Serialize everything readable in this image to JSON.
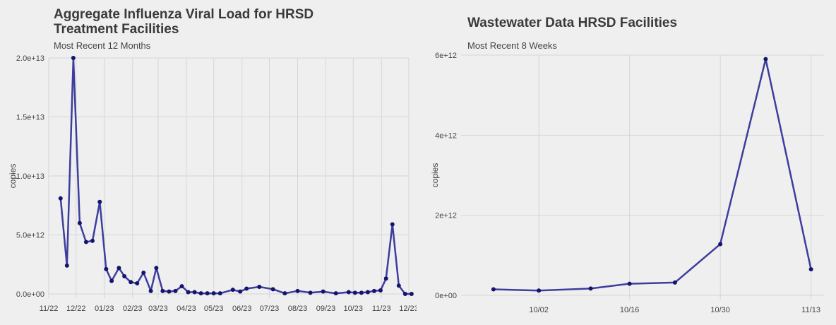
{
  "colors": {
    "background": "#efefef",
    "grid": "#d6d6d6",
    "line": "#3d3d9e",
    "point": "#14146e"
  },
  "chart_data": [
    {
      "type": "line",
      "title": "Aggregate Influenza Viral Load for HRSD\n Treatment Facilities",
      "subtitle": "Most Recent 12 Months",
      "ylabel": "copies",
      "xlabel": "",
      "ylim": [
        0,
        20000000000000
      ],
      "y_ticks": [
        0,
        5000000000000,
        10000000000000,
        15000000000000,
        20000000000000
      ],
      "y_tick_labels": [
        "0.0e+00",
        "5.0e+12",
        "1.0e+13",
        "1.5e+13",
        "2.0e+13"
      ],
      "xlim": [
        "2022-11-01",
        "2023-12-01"
      ],
      "x_ticks": [
        "2022-11-01",
        "2022-12-01",
        "2023-01-01",
        "2023-02-01",
        "2023-03-01",
        "2023-04-01",
        "2023-05-01",
        "2023-06-01",
        "2023-07-01",
        "2023-08-01",
        "2023-09-01",
        "2023-10-01",
        "2023-11-01",
        "2023-12-01"
      ],
      "x_tick_labels": [
        "11/22",
        "12/22",
        "01/23",
        "02/23",
        "03/23",
        "04/23",
        "05/23",
        "06/23",
        "07/23",
        "08/23",
        "09/23",
        "10/23",
        "11/23",
        "12/23"
      ],
      "grid": true,
      "series": [
        {
          "x": [
            "2022-11-14",
            "2022-11-21",
            "2022-11-28",
            "2022-12-05",
            "2022-12-12",
            "2022-12-19",
            "2022-12-27",
            "2023-01-03",
            "2023-01-09",
            "2023-01-17",
            "2023-01-23",
            "2023-01-30",
            "2023-02-06",
            "2023-02-13",
            "2023-02-21",
            "2023-02-27",
            "2023-03-06",
            "2023-03-13",
            "2023-03-20",
            "2023-03-27",
            "2023-04-03",
            "2023-04-10",
            "2023-04-17",
            "2023-04-24",
            "2023-05-01",
            "2023-05-08",
            "2023-05-22",
            "2023-05-30",
            "2023-06-06",
            "2023-06-20",
            "2023-07-05",
            "2023-07-18",
            "2023-08-01",
            "2023-08-15",
            "2023-08-29",
            "2023-09-12",
            "2023-09-26",
            "2023-10-03",
            "2023-10-10",
            "2023-10-17",
            "2023-10-24",
            "2023-10-31",
            "2023-11-06",
            "2023-11-13",
            "2023-11-20",
            "2023-11-27",
            "2023-12-04"
          ],
          "values": [
            8100000000000,
            2400000000000,
            20000000000000,
            6000000000000,
            4400000000000,
            4500000000000,
            7800000000000,
            2100000000000,
            1100000000000,
            2200000000000,
            1500000000000,
            1000000000000,
            900000000000,
            1800000000000,
            250000000000,
            2200000000000,
            250000000000,
            200000000000,
            250000000000,
            650000000000,
            150000000000,
            150000000000,
            50000000000,
            50000000000,
            50000000000,
            50000000000,
            350000000000,
            200000000000,
            450000000000,
            600000000000,
            400000000000,
            50000000000,
            250000000000,
            100000000000,
            200000000000,
            50000000000,
            150000000000,
            100000000000,
            100000000000,
            150000000000,
            250000000000,
            300000000000,
            1300000000000,
            5900000000000,
            700000000000,
            0,
            0
          ]
        }
      ]
    },
    {
      "type": "line",
      "title": "Wastewater Data HRSD Facilities",
      "subtitle": "Most Recent 8 Weeks",
      "ylabel": "copies",
      "xlabel": "",
      "ylim": [
        0,
        6000000000000
      ],
      "y_ticks": [
        0,
        2000000000000,
        4000000000000,
        6000000000000
      ],
      "y_tick_labels": [
        "0e+00",
        "2e+12",
        "4e+12",
        "6e+12"
      ],
      "xlim": [
        "2023-09-20",
        "2023-11-15"
      ],
      "x_ticks": [
        "2023-10-02",
        "2023-10-16",
        "2023-10-30",
        "2023-11-13"
      ],
      "x_tick_labels": [
        "10/02",
        "10/16",
        "10/30",
        "11/13"
      ],
      "grid": true,
      "series": [
        {
          "x": [
            "2023-09-25",
            "2023-10-02",
            "2023-10-10",
            "2023-10-16",
            "2023-10-23",
            "2023-10-30",
            "2023-11-06",
            "2023-11-13"
          ],
          "values": [
            150000000000,
            120000000000,
            170000000000,
            290000000000,
            320000000000,
            1280000000000,
            5900000000000,
            650000000000
          ]
        }
      ]
    }
  ]
}
